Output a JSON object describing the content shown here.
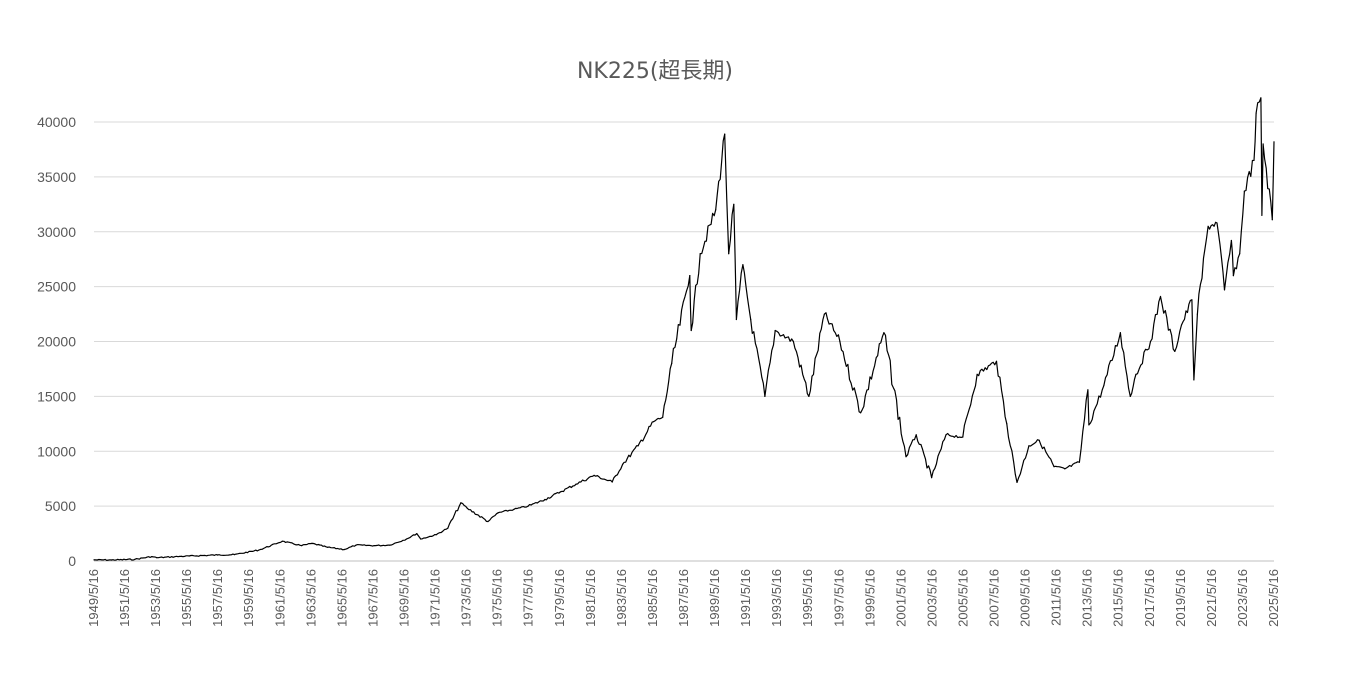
{
  "chart_data": {
    "type": "line",
    "title": "NK225(超長期)",
    "xlabel": "",
    "ylabel": "",
    "ylim": [
      0,
      40000
    ],
    "yticks": [
      0,
      5000,
      10000,
      15000,
      20000,
      25000,
      30000,
      35000,
      40000
    ],
    "ytick_labels": [
      "0",
      "5000",
      "10000",
      "15000",
      "20000",
      "25000",
      "30000",
      "35000",
      "40000"
    ],
    "xlim": [
      "1949/5/16",
      "2025/5/16"
    ],
    "xtick_labels": [
      "1949/5/16",
      "1951/5/16",
      "1953/5/16",
      "1955/5/16",
      "1957/5/16",
      "1959/5/16",
      "1961/5/16",
      "1963/5/16",
      "1965/5/16",
      "1967/5/16",
      "1969/5/16",
      "1971/5/16",
      "1973/5/16",
      "1975/5/16",
      "1977/5/16",
      "1979/5/16",
      "1981/5/16",
      "1983/5/16",
      "1985/5/16",
      "1987/5/16",
      "1989/5/16",
      "1991/5/16",
      "1993/5/16",
      "1995/5/16",
      "1997/5/16",
      "1999/5/16",
      "2001/5/16",
      "2003/5/16",
      "2005/5/16",
      "2007/5/16",
      "2009/5/16",
      "2011/5/16",
      "2013/5/16",
      "2015/5/16",
      "2017/5/16",
      "2019/5/16",
      "2021/5/16",
      "2023/5/16",
      "2025/5/16"
    ],
    "grid": true,
    "legend": "none",
    "series_color": "#000000",
    "series": [
      {
        "x": [
          "1949/5/16",
          "1950/7/1",
          "1952/1/1",
          "1953/2/1",
          "1953/6/1",
          "1955/1/1",
          "1957/5/1",
          "1958/6/1",
          "1960/1/1",
          "1961/7/1",
          "1962/10/1",
          "1963/6/1",
          "1964/6/1",
          "1965/7/1",
          "1966/4/1",
          "1967/6/1",
          "1968/6/1",
          "1969/7/1",
          "1970/3/1",
          "1970/6/1",
          "1971/6/1",
          "1972/3/1",
          "1973/1/1",
          "1973/6/1",
          "1974/10/1",
          "1975/6/1",
          "1976/6/1",
          "1977/5/1",
          "1978/6/1",
          "1979/6/1",
          "1980/6/1",
          "1981/8/1",
          "1982/10/1",
          "1983/6/1",
          "1984/6/1",
          "1985/6/1",
          "1986/1/1",
          "1986/8/1",
          "1987/10/1",
          "1987/11/1",
          "1988/6/1",
          "1989/6/1",
          "1989/12/29",
          "1990/4/1",
          "1990/8/1",
          "1990/10/1",
          "1991/3/1",
          "1991/9/1",
          "1992/8/1",
          "1993/4/1",
          "1994/6/1",
          "1995/6/1",
          "1996/6/1",
          "1997/6/1",
          "1998/10/1",
          "2000/4/1",
          "2001/9/1",
          "2002/5/1",
          "2003/4/28",
          "2004/4/1",
          "2005/5/1",
          "2006/4/1",
          "2007/7/1",
          "2008/3/1",
          "2008/10/27",
          "2009/8/1",
          "2010/4/1",
          "2011/3/15",
          "2011/11/25",
          "2012/11/1",
          "2013/5/22",
          "2013/6/13",
          "2014/6/1",
          "2015/6/24",
          "2016/2/12",
          "2016/6/24",
          "2017/6/1",
          "2018/1/23",
          "2018/12/25",
          "2019/6/1",
          "2020/2/1",
          "2020/3/19",
          "2020/6/8",
          "2021/2/16",
          "2021/9/14",
          "2022/3/9",
          "2022/8/17",
          "2022/10/3",
          "2023/3/1",
          "2023/6/19",
          "2024/2/1",
          "2024/3/22",
          "2024/7/11",
          "2024/8/5",
          "2024/9/1",
          "2025/4/7",
          "2025/5/16"
        ],
        "values": [
          100,
          95,
          150,
          400,
          300,
          420,
          550,
          580,
          1000,
          1800,
          1400,
          1600,
          1250,
          1050,
          1450,
          1400,
          1450,
          2000,
          2500,
          2000,
          2400,
          3000,
          5300,
          4800,
          3600,
          4400,
          4700,
          5000,
          5600,
          6300,
          7000,
          7800,
          7200,
          8800,
          10500,
          12700,
          13100,
          18000,
          26000,
          21000,
          28000,
          32000,
          38900,
          28000,
          32500,
          22000,
          27000,
          22000,
          15000,
          21000,
          20000,
          15000,
          22500,
          20000,
          13500,
          20800,
          9500,
          11500,
          7600,
          11500,
          11300,
          17000,
          18200,
          12500,
          7160,
          10500,
          11000,
          8600,
          8400,
          9000,
          15600,
          12400,
          16000,
          20800,
          15000,
          17000,
          20000,
          24100,
          19100,
          21500,
          23800,
          16500,
          22500,
          30500,
          30800,
          24700,
          29200,
          26000,
          28000,
          33700,
          36500,
          40800,
          42200,
          31500,
          38000,
          31100,
          38200
        ]
      }
    ]
  }
}
